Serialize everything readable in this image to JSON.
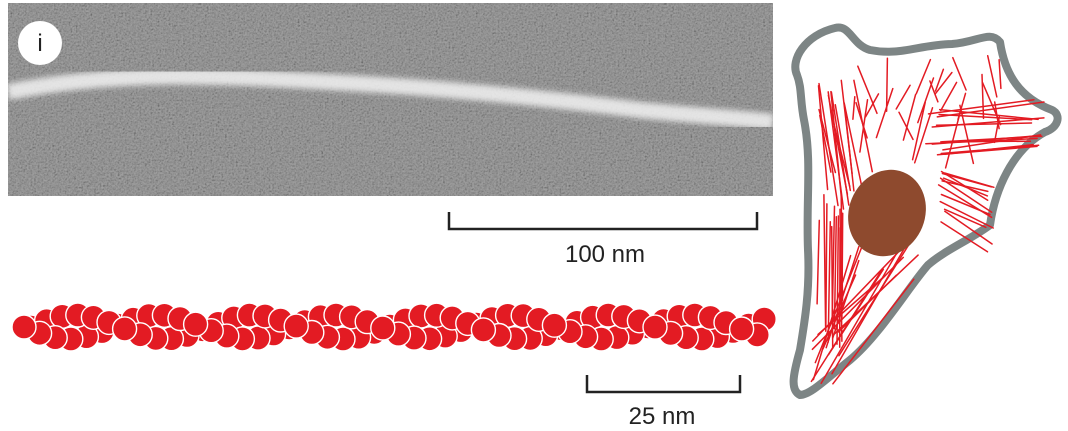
{
  "panel_label": "i",
  "micrograph_scale_bar": {
    "label": "100 nm"
  },
  "model_scale_bar": {
    "label": "25 nm"
  },
  "colors": {
    "filament_red": "#e31b23",
    "cell_outline": "#7d8585",
    "nucleus": "#8e4a2e",
    "micrograph_bg": "#9a9a9a"
  },
  "icons": {
    "panel_badge": "circle-badge",
    "cell": "cell-with-actin-filaments"
  }
}
